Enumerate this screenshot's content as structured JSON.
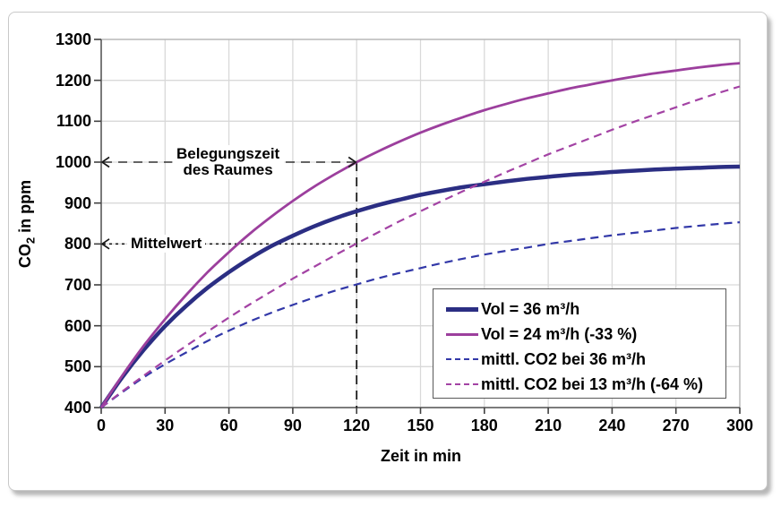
{
  "page": {
    "background": "#ffffff"
  },
  "card": {
    "background": "#ffffff",
    "border_color": "#c9c9c9",
    "shadow_color": "#b4b4b4"
  },
  "colors": {
    "grid": "#d9d9d9",
    "frame": "#b3b3b3",
    "axis": "#6e6e6e",
    "tick": "#404040",
    "annotation": "#1a1a1a"
  },
  "chart_data": {
    "type": "line",
    "title": "",
    "xlabel": "Zeit in min",
    "ylabel": {
      "prefix": "CO",
      "sub": "2",
      "suffix": " in ppm",
      "text": "CO2 in ppm"
    },
    "xlim": [
      0,
      300
    ],
    "ylim": [
      400,
      1300
    ],
    "x_ticks": [
      0,
      30,
      60,
      90,
      120,
      150,
      180,
      210,
      240,
      270,
      300
    ],
    "y_ticks": [
      400,
      500,
      600,
      700,
      800,
      900,
      1000,
      1100,
      1200,
      1300
    ],
    "grid": true,
    "legend_position": "inside-bottom-right",
    "x": [
      0,
      10,
      20,
      30,
      40,
      50,
      60,
      70,
      80,
      90,
      100,
      110,
      120,
      130,
      140,
      150,
      160,
      170,
      180,
      190,
      200,
      210,
      220,
      230,
      240,
      250,
      260,
      270,
      280,
      290,
      300
    ],
    "series": [
      {
        "label": "Vol = 36 m³/h",
        "color": "#2b2e83",
        "style": "solid",
        "width": 4.5,
        "values": [
          400,
          475,
          541,
          599,
          649,
          693,
          731,
          765,
          795,
          820,
          843,
          863,
          880,
          895,
          908,
          920,
          930,
          939,
          946,
          953,
          959,
          964,
          969,
          972,
          976,
          979,
          982,
          984,
          986,
          988,
          989
        ]
      },
      {
        "label": "Vol = 24 m³/h (-33 %)",
        "color": "#9c3f9d",
        "style": "solid",
        "width": 2.8,
        "values": [
          400,
          479,
          551,
          616,
          676,
          731,
          780,
          826,
          867,
          905,
          940,
          971,
          1000,
          1026,
          1050,
          1072,
          1092,
          1110,
          1127,
          1142,
          1156,
          1168,
          1180,
          1190,
          1200,
          1209,
          1217,
          1224,
          1231,
          1237,
          1242
        ]
      },
      {
        "label": "mittl. CO2 bei 36 m³/h",
        "color": "#3238a8",
        "style": "dashed",
        "width": 2.2,
        "values": [
          400,
          438,
          474,
          506,
          535,
          563,
          588,
          611,
          632,
          651,
          669,
          686,
          701,
          716,
          729,
          741,
          753,
          764,
          774,
          783,
          791,
          800,
          807,
          814,
          821,
          827,
          833,
          839,
          844,
          849,
          853
        ]
      },
      {
        "label": "mittl. CO2 bei 13 m³/h (-64 %)",
        "color": "#a343a4",
        "style": "dashed",
        "width": 2.2,
        "values": [
          400,
          440,
          478,
          515,
          551,
          586,
          620,
          653,
          684,
          715,
          744,
          773,
          801,
          828,
          855,
          880,
          905,
          929,
          952,
          975,
          997,
          1019,
          1039,
          1059,
          1079,
          1098,
          1116,
          1134,
          1152,
          1169,
          1185
        ]
      }
    ]
  },
  "annotations": {
    "belegungszeit": {
      "text_line1": "Belegungszeit",
      "text_line2": "des Raumes",
      "y": 1000,
      "x_start": 0,
      "x_end": 120,
      "arrowheads": "both"
    },
    "mittelwert": {
      "text": "Mittelwert",
      "y": 800,
      "x_start": 0,
      "x_end": 120,
      "arrowheads": "left"
    },
    "vertical_marker": {
      "x": 120,
      "y_from": 400,
      "y_to": 1000
    }
  }
}
